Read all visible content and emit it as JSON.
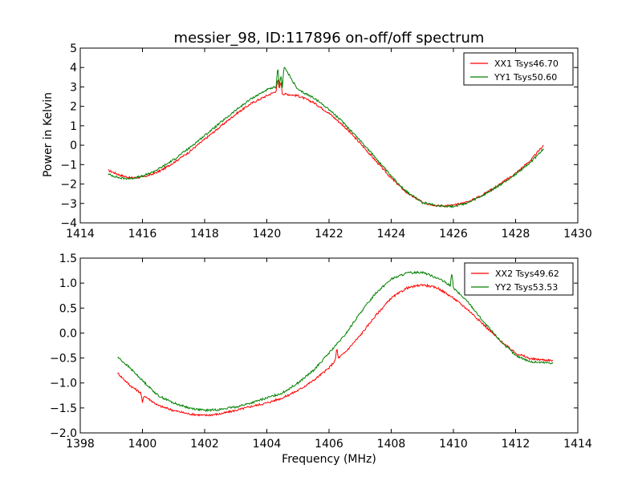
{
  "figure": {
    "title": "messier_98, ID:117896 on-off/off spectrum",
    "ylabel": "Power in Kelvin",
    "xlabel": "Frequency (MHz)"
  },
  "chart_data": [
    {
      "type": "line",
      "title": "messier_98, ID:117896 on-off/off spectrum",
      "xlabel": "",
      "ylabel": "Power in Kelvin",
      "xlim": [
        1414,
        1430
      ],
      "ylim": [
        -4,
        5
      ],
      "xticks": [
        1414,
        1416,
        1418,
        1420,
        1422,
        1424,
        1426,
        1428,
        1430
      ],
      "yticks": [
        -4,
        -3,
        -2,
        -1,
        0,
        1,
        2,
        3,
        4,
        5
      ],
      "xtick_labels": [
        "1414",
        "1416",
        "1418",
        "1420",
        "1422",
        "1424",
        "1426",
        "1428",
        "1430"
      ],
      "ytick_labels": [
        "−4",
        "−3",
        "−2",
        "−1",
        "0",
        "1",
        "2",
        "3",
        "4",
        "5"
      ],
      "grid": false,
      "legend_position": "top-right",
      "series": [
        {
          "name": "XX1 Tsys46.70",
          "color": "#ff0000",
          "x": [
            1414.9,
            1415.3,
            1415.6,
            1416.0,
            1416.3,
            1416.6,
            1417.0,
            1417.5,
            1418.0,
            1418.5,
            1419.0,
            1419.5,
            1420.0,
            1420.2,
            1420.3,
            1420.35,
            1420.4,
            1420.45,
            1420.5,
            1421.0,
            1421.5,
            1422.0,
            1422.5,
            1423.0,
            1423.5,
            1424.0,
            1424.5,
            1425.0,
            1425.5,
            1426.0,
            1426.5,
            1427.0,
            1427.5,
            1428.0,
            1428.5,
            1428.9
          ],
          "y": [
            -1.3,
            -1.55,
            -1.68,
            -1.65,
            -1.5,
            -1.3,
            -0.9,
            -0.35,
            0.3,
            0.95,
            1.6,
            2.15,
            2.55,
            2.7,
            2.8,
            3.4,
            2.9,
            3.3,
            2.65,
            2.55,
            2.2,
            1.65,
            0.95,
            0.1,
            -0.8,
            -1.7,
            -2.45,
            -2.95,
            -3.12,
            -3.1,
            -2.9,
            -2.5,
            -2.0,
            -1.45,
            -0.75,
            0.0
          ]
        },
        {
          "name": "YY1 Tsys50.60",
          "color": "#008000",
          "x": [
            1414.9,
            1415.3,
            1415.6,
            1416.0,
            1416.3,
            1416.6,
            1417.0,
            1417.5,
            1418.0,
            1418.5,
            1419.0,
            1419.5,
            1420.0,
            1420.2,
            1420.3,
            1420.35,
            1420.4,
            1420.45,
            1420.5,
            1420.55,
            1421.0,
            1421.5,
            1422.0,
            1422.5,
            1423.0,
            1423.5,
            1424.0,
            1424.5,
            1425.0,
            1425.5,
            1426.0,
            1426.5,
            1427.0,
            1427.5,
            1428.0,
            1428.5,
            1428.9
          ],
          "y": [
            -1.5,
            -1.7,
            -1.72,
            -1.6,
            -1.4,
            -1.15,
            -0.75,
            -0.15,
            0.5,
            1.15,
            1.8,
            2.4,
            2.85,
            2.95,
            3.0,
            4.0,
            3.1,
            3.6,
            3.0,
            4.05,
            2.85,
            2.45,
            1.85,
            1.1,
            0.25,
            -0.65,
            -1.6,
            -2.4,
            -2.95,
            -3.12,
            -3.15,
            -2.95,
            -2.55,
            -2.05,
            -1.5,
            -0.85,
            -0.2
          ]
        }
      ]
    },
    {
      "type": "line",
      "title": "",
      "xlabel": "Frequency (MHz)",
      "ylabel": "",
      "xlim": [
        1398,
        1414
      ],
      "ylim": [
        -2.0,
        1.5
      ],
      "xticks": [
        1398,
        1400,
        1402,
        1404,
        1406,
        1408,
        1410,
        1412,
        1414
      ],
      "yticks": [
        -2.0,
        -1.5,
        -1.0,
        -0.5,
        0.0,
        0.5,
        1.0,
        1.5
      ],
      "xtick_labels": [
        "1398",
        "1400",
        "1402",
        "1404",
        "1406",
        "1408",
        "1410",
        "1412",
        "1414"
      ],
      "ytick_labels": [
        "−2.0",
        "−1.5",
        "−1.0",
        "−0.5",
        "0.0",
        "0.5",
        "1.0",
        "1.5"
      ],
      "grid": false,
      "legend_position": "top-right",
      "series": [
        {
          "name": "XX2 Tsys49.62",
          "color": "#ff0000",
          "x": [
            1399.2,
            1399.6,
            1399.95,
            1400.0,
            1400.05,
            1400.5,
            1401.0,
            1401.5,
            1402.0,
            1402.5,
            1403.0,
            1403.5,
            1404.0,
            1404.5,
            1405.0,
            1405.5,
            1406.0,
            1406.2,
            1406.25,
            1406.3,
            1406.5,
            1407.0,
            1407.5,
            1408.0,
            1408.5,
            1409.0,
            1409.5,
            1410.0,
            1410.5,
            1411.0,
            1411.5,
            1412.0,
            1412.5,
            1413.2
          ],
          "y": [
            -0.8,
            -1.05,
            -1.2,
            -1.4,
            -1.25,
            -1.45,
            -1.55,
            -1.62,
            -1.65,
            -1.62,
            -1.55,
            -1.47,
            -1.4,
            -1.3,
            -1.15,
            -0.95,
            -0.7,
            -0.55,
            -0.3,
            -0.5,
            -0.4,
            -0.05,
            0.35,
            0.7,
            0.9,
            0.97,
            0.9,
            0.7,
            0.45,
            0.15,
            -0.15,
            -0.4,
            -0.52,
            -0.55
          ]
        },
        {
          "name": "YY2 Tsys53.53",
          "color": "#008000",
          "x": [
            1399.2,
            1399.6,
            1400.0,
            1400.5,
            1401.0,
            1401.5,
            1402.0,
            1402.5,
            1403.0,
            1403.5,
            1404.0,
            1404.5,
            1405.0,
            1405.5,
            1406.0,
            1406.5,
            1407.0,
            1407.5,
            1408.0,
            1408.5,
            1409.0,
            1409.5,
            1409.9,
            1409.95,
            1410.0,
            1410.5,
            1411.0,
            1411.5,
            1412.0,
            1412.5,
            1413.2
          ],
          "y": [
            -0.48,
            -0.7,
            -0.95,
            -1.25,
            -1.4,
            -1.5,
            -1.55,
            -1.53,
            -1.48,
            -1.4,
            -1.3,
            -1.2,
            -1.0,
            -0.75,
            -0.4,
            -0.05,
            0.4,
            0.8,
            1.08,
            1.2,
            1.22,
            1.1,
            0.95,
            1.22,
            0.9,
            0.6,
            0.2,
            -0.15,
            -0.45,
            -0.58,
            -0.6
          ]
        }
      ]
    }
  ]
}
